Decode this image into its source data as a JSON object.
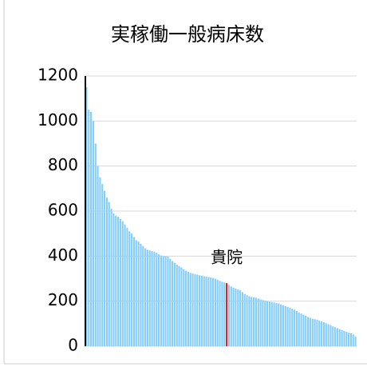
{
  "chart_data": {
    "type": "bar",
    "title": "実稼働一般病床数",
    "categories": [
      null,
      null,
      null,
      null,
      null,
      null,
      null,
      null,
      null,
      null,
      null,
      null,
      null,
      null,
      null,
      null,
      null,
      null,
      null,
      null,
      null,
      null,
      null,
      null,
      null,
      null,
      null,
      null,
      null,
      null,
      null,
      null,
      null,
      null,
      null,
      null,
      null,
      null,
      null,
      null,
      null,
      null,
      null,
      null,
      null,
      null,
      null,
      null,
      null,
      null,
      null,
      null,
      null,
      null,
      null,
      null,
      null,
      null,
      null,
      null,
      null,
      null,
      null,
      null,
      null,
      null,
      null,
      null,
      null,
      null,
      null,
      null,
      null,
      null,
      null,
      null,
      null,
      null,
      null,
      null,
      null,
      null,
      null,
      null,
      null,
      null,
      null,
      null,
      null,
      null,
      null,
      null,
      null,
      null,
      null,
      null,
      null,
      null,
      null,
      null,
      null,
      null,
      null,
      null,
      null,
      null,
      null,
      null,
      null,
      null,
      null,
      null,
      null,
      null,
      null,
      null,
      null,
      null,
      null,
      null
    ],
    "values": [
      1150,
      1050,
      1040,
      1000,
      900,
      800,
      750,
      720,
      690,
      660,
      640,
      610,
      590,
      580,
      575,
      565,
      555,
      540,
      525,
      510,
      500,
      485,
      470,
      465,
      455,
      445,
      435,
      428,
      425,
      422,
      420,
      415,
      408,
      403,
      400,
      400,
      398,
      388,
      378,
      370,
      362,
      356,
      350,
      342,
      335,
      330,
      326,
      323,
      320,
      318,
      315,
      313,
      311,
      309,
      307,
      305,
      303,
      300,
      295,
      290,
      286,
      283,
      280,
      272,
      266,
      260,
      256,
      252,
      248,
      240,
      232,
      226,
      222,
      219,
      217,
      215,
      212,
      208,
      205,
      202,
      200,
      198,
      196,
      194,
      192,
      190,
      186,
      182,
      178,
      175,
      170,
      166,
      162,
      156,
      150,
      145,
      140,
      135,
      130,
      126,
      122,
      120,
      117,
      113,
      110,
      106,
      102,
      98,
      94,
      88,
      84,
      80,
      76,
      72,
      68,
      64,
      60,
      57,
      52,
      42
    ],
    "color": "#87cefa",
    "annotation": {
      "text": "貴院",
      "index": 62,
      "color": "#e02020"
    },
    "ylim": [
      0,
      1200
    ],
    "yticks": [
      0,
      200,
      400,
      600,
      800,
      1000,
      1200
    ],
    "grid": true
  }
}
